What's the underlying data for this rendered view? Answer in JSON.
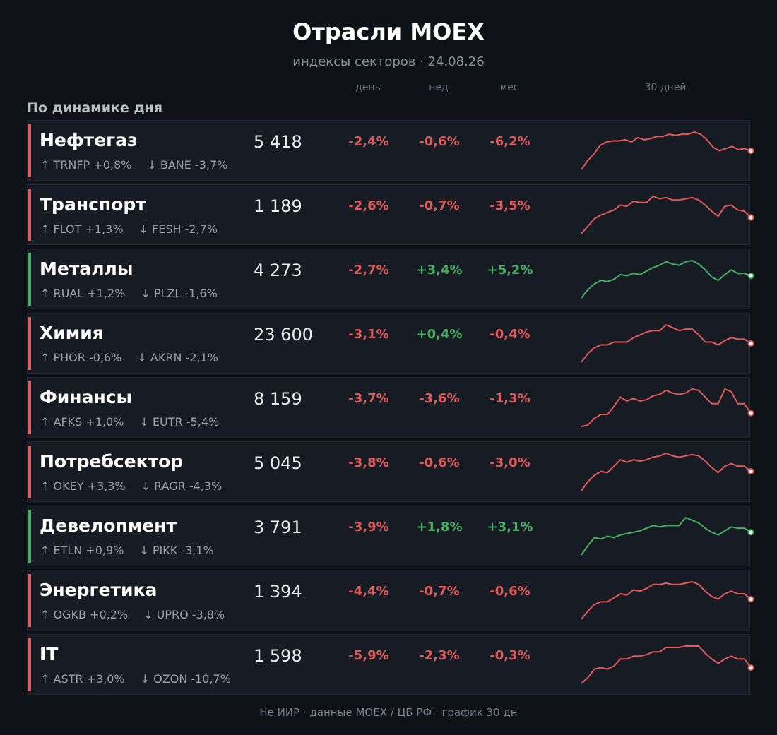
{
  "header": {
    "title": "Отрасли MOEX",
    "subtitle": "индексы секторов · 24.08.26"
  },
  "columns": {
    "day": "день",
    "week": "нед",
    "month": "мес",
    "spark": "30 дней"
  },
  "section_label": "По динамике дня",
  "colors": {
    "negative": "#e05a5a",
    "positive": "#45b060",
    "background": "#0e1116",
    "row": "#171b24"
  },
  "sectors": [
    {
      "name": "Нефтегаз",
      "value": "5 418",
      "day": "-2,4%",
      "week": "-0,6%",
      "month": "-6,2%",
      "up": "↑ TRNFP +0,8%",
      "down": "↓ BANE -3,7%",
      "trend": "negative",
      "spark": [
        10,
        18,
        24,
        32,
        35,
        36,
        36,
        37,
        35,
        39,
        37,
        38,
        40,
        40,
        42,
        41,
        42,
        42,
        44,
        42,
        37,
        30,
        27,
        29,
        31,
        28,
        29,
        27
      ]
    },
    {
      "name": "Транспорт",
      "value": "1 189",
      "day": "-2,6%",
      "week": "-0,7%",
      "month": "-3,5%",
      "up": "↑ FLOT +1,3%",
      "down": "↓ FESH -2,7%",
      "trend": "negative",
      "spark": [
        10,
        16,
        22,
        25,
        27,
        29,
        33,
        32,
        36,
        35,
        35,
        40,
        38,
        39,
        37,
        37,
        38,
        39,
        37,
        33,
        28,
        24,
        32,
        33,
        29,
        28,
        23
      ]
    },
    {
      "name": "Металлы",
      "value": "4 273",
      "day": "-2,7%",
      "week": "+3,4%",
      "month": "+5,2%",
      "up": "↑ RUAL +1,2%",
      "down": "↓ PLZL -1,6%",
      "trend": "positive",
      "spark": [
        10,
        17,
        22,
        25,
        24,
        26,
        30,
        29,
        31,
        30,
        33,
        36,
        38,
        41,
        39,
        38,
        41,
        42,
        39,
        34,
        28,
        25,
        30,
        34,
        31,
        31,
        29
      ]
    },
    {
      "name": "Химия",
      "value": "23 600",
      "day": "-3,1%",
      "week": "+0,4%",
      "month": "-0,4%",
      "up": "↑ PHOR -0,6%",
      "down": "↓ AKRN -2,1%",
      "trend": "negative",
      "spark": [
        10,
        16,
        20,
        22,
        22,
        24,
        24,
        24,
        27,
        29,
        31,
        32,
        32,
        36,
        34,
        32,
        33,
        33,
        29,
        24,
        24,
        22,
        25,
        27,
        26,
        26,
        23
      ]
    },
    {
      "name": "Финансы",
      "value": "8 159",
      "day": "-3,7%",
      "week": "-3,6%",
      "month": "-1,3%",
      "up": "↑ AFKS +1,0%",
      "down": "↓ EUTR -5,4%",
      "trend": "negative",
      "spark": [
        10,
        11,
        16,
        19,
        19,
        25,
        32,
        29,
        31,
        29,
        30,
        33,
        34,
        37,
        35,
        34,
        35,
        38,
        37,
        32,
        27,
        27,
        38,
        36,
        27,
        27,
        20
      ]
    },
    {
      "name": "Потребсектор",
      "value": "5 045",
      "day": "-3,8%",
      "week": "-0,6%",
      "month": "-3,0%",
      "up": "↑ OKEY +3,3%",
      "down": "↓ RAGR -4,3%",
      "trend": "negative",
      "spark": [
        10,
        17,
        22,
        25,
        24,
        29,
        34,
        32,
        34,
        33,
        34,
        36,
        37,
        39,
        37,
        36,
        37,
        38,
        37,
        33,
        28,
        24,
        29,
        31,
        29,
        29,
        25
      ]
    },
    {
      "name": "Девелопмент",
      "value": "3 791",
      "day": "-3,9%",
      "week": "+1,8%",
      "month": "+3,1%",
      "up": "↑ ETLN +0,9%",
      "down": "↓ PIKK -3,1%",
      "trend": "positive",
      "spark": [
        10,
        17,
        23,
        22,
        24,
        23,
        25,
        26,
        27,
        28,
        30,
        32,
        31,
        32,
        32,
        32,
        38,
        36,
        34,
        30,
        27,
        25,
        28,
        31,
        30,
        30,
        27
      ]
    },
    {
      "name": "Энергетика",
      "value": "1 394",
      "day": "-4,4%",
      "week": "-0,7%",
      "month": "-0,6%",
      "up": "↑ OGKB +0,2%",
      "down": "↓ UPRO -3,8%",
      "trend": "negative",
      "spark": [
        10,
        16,
        21,
        23,
        23,
        26,
        29,
        28,
        32,
        31,
        33,
        36,
        36,
        37,
        36,
        36,
        37,
        38,
        36,
        31,
        27,
        25,
        29,
        31,
        29,
        29,
        25
      ]
    },
    {
      "name": "IT",
      "value": "1 598",
      "day": "-5,9%",
      "week": "-2,3%",
      "month": "-0,3%",
      "up": "↑ ASTR +3,0%",
      "down": "↓ OZON -10,7%",
      "trend": "negative",
      "spark": [
        10,
        14,
        20,
        21,
        20,
        22,
        27,
        27,
        29,
        29,
        30,
        32,
        32,
        35,
        35,
        35,
        36,
        36,
        36,
        31,
        27,
        24,
        27,
        29,
        27,
        27,
        21
      ]
    }
  ],
  "footer": "Не ИИР  ·  данные MOEX / ЦБ РФ  ·  график 30 дн"
}
